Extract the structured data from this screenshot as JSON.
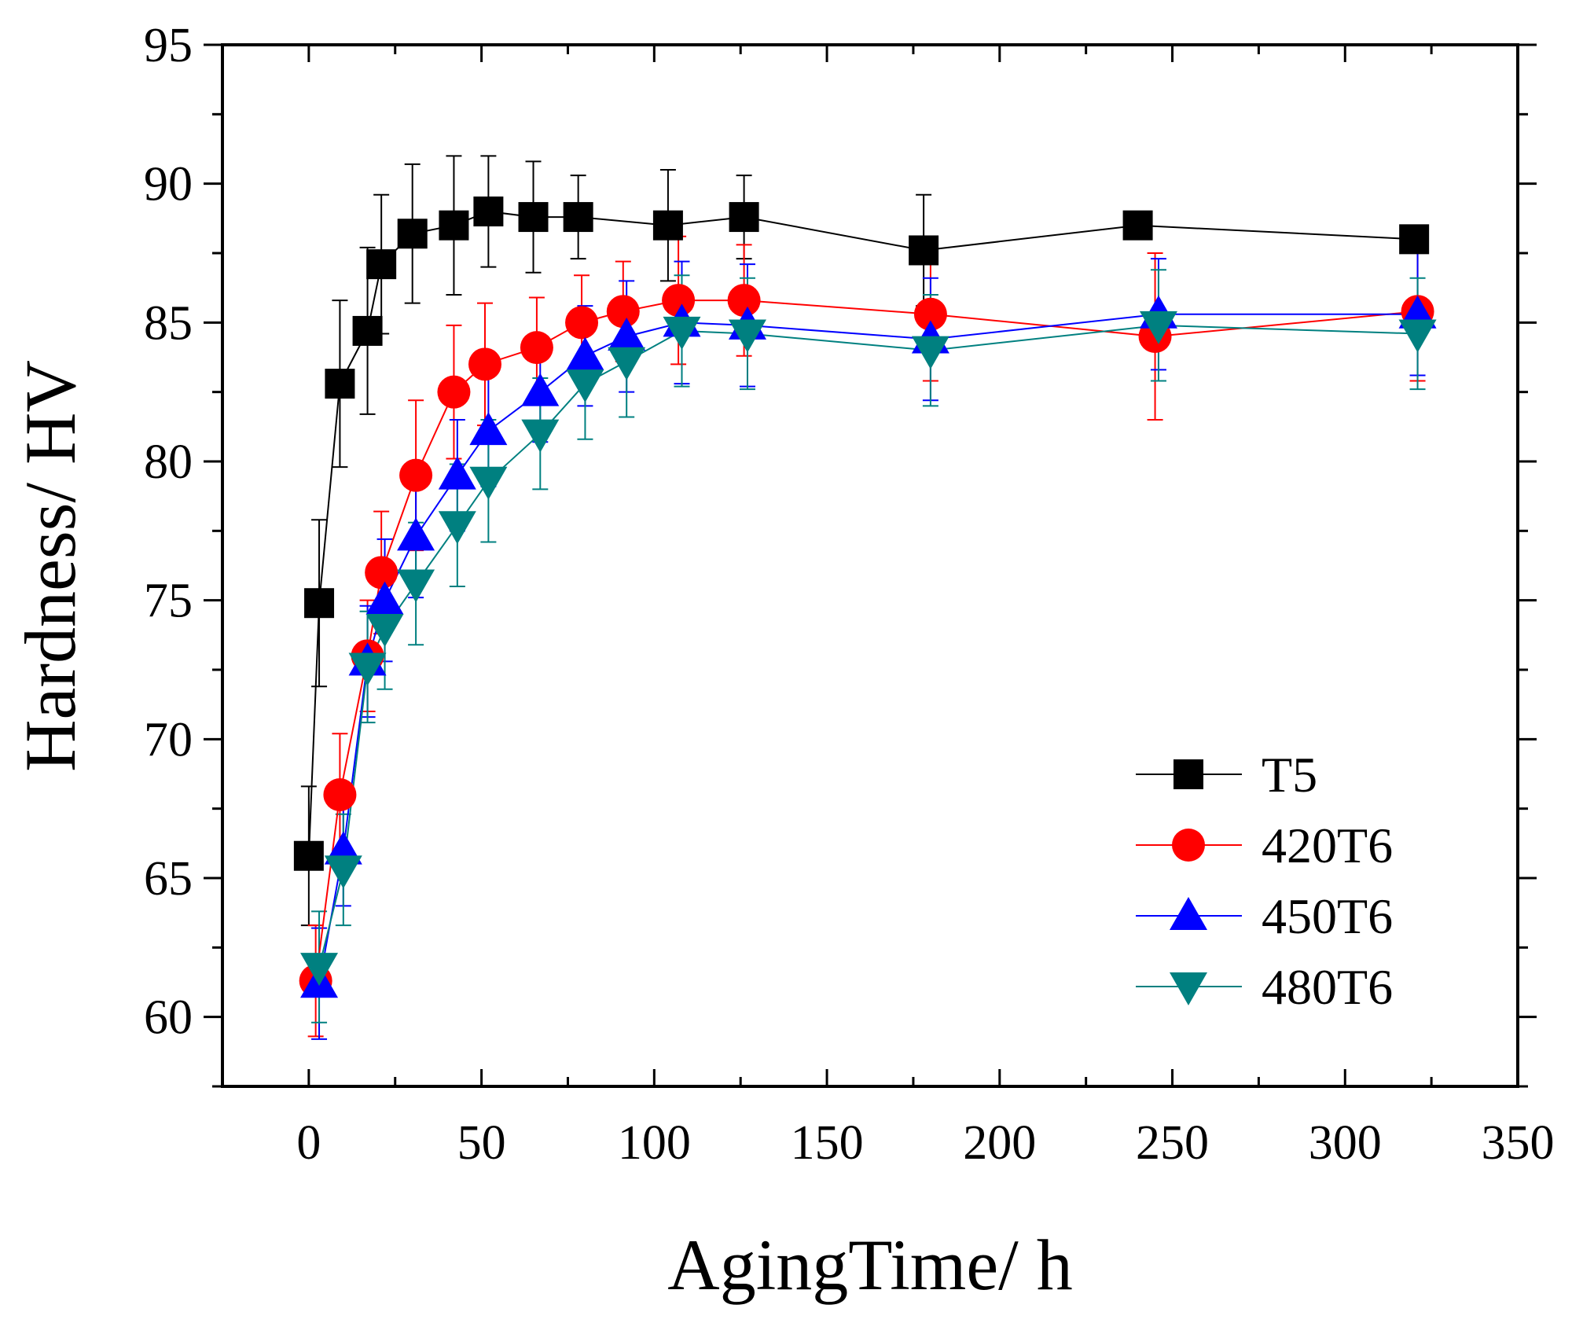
{
  "chart_data": {
    "type": "line",
    "title": "",
    "xlabel": "AgingTime/ h",
    "ylabel": "Hardness/ HV",
    "xlim": [
      -25,
      350
    ],
    "ylim": [
      57.5,
      95
    ],
    "x_ticks": [
      0,
      50,
      100,
      150,
      200,
      250,
      300,
      350
    ],
    "y_ticks": [
      60,
      65,
      70,
      75,
      80,
      85,
      90,
      95
    ],
    "x_tick_labels": [
      "0",
      "50",
      "100",
      "150",
      "200",
      "250",
      "300",
      "350"
    ],
    "y_tick_labels": [
      "60",
      "65",
      "70",
      "75",
      "80",
      "85",
      "90",
      "95"
    ],
    "grid": false,
    "legend_position": "lower-right",
    "series": [
      {
        "name": "T5",
        "marker": "square",
        "color": "#000000",
        "x": [
          0,
          3,
          9,
          17,
          21,
          30,
          42,
          52,
          65,
          78,
          104,
          126,
          178,
          240,
          320
        ],
        "y": [
          65.8,
          74.9,
          82.8,
          84.7,
          87.1,
          88.2,
          88.5,
          89.0,
          88.8,
          88.8,
          88.5,
          88.8,
          87.6,
          88.5,
          88.0
        ],
        "err": [
          2.5,
          3.0,
          3.0,
          3.0,
          2.5,
          2.5,
          2.5,
          2.0,
          2.0,
          1.5,
          2.0,
          1.5,
          2.0,
          0.0,
          0.0
        ]
      },
      {
        "name": "420T6",
        "marker": "circle",
        "color": "#ff0000",
        "x": [
          2,
          9,
          17,
          21,
          31,
          42,
          51,
          66,
          79,
          91,
          107,
          126,
          180,
          245,
          321
        ],
        "y": [
          61.3,
          68.0,
          73.0,
          76.0,
          79.5,
          82.5,
          83.5,
          84.1,
          85.0,
          85.4,
          85.8,
          85.8,
          85.3,
          84.5,
          85.4
        ],
        "err": [
          2.0,
          2.2,
          2.0,
          2.2,
          2.7,
          2.4,
          2.2,
          1.8,
          1.7,
          1.8,
          2.3,
          2.0,
          2.4,
          3.0,
          2.5
        ]
      },
      {
        "name": "450T6",
        "marker": "triangle-up",
        "color": "#0000ff",
        "x": [
          3,
          10,
          17,
          22,
          31,
          43,
          52,
          67,
          80,
          92,
          108,
          127,
          180,
          246,
          321
        ],
        "y": [
          61.2,
          66.0,
          72.8,
          75.0,
          77.3,
          79.5,
          81.1,
          82.5,
          83.8,
          84.5,
          85.0,
          84.9,
          84.4,
          85.3,
          85.3
        ],
        "err": [
          2.0,
          2.0,
          2.0,
          2.2,
          2.2,
          2.0,
          2.0,
          1.8,
          1.8,
          2.0,
          2.2,
          2.2,
          2.2,
          2.0,
          2.2
        ]
      },
      {
        "name": "480T6",
        "marker": "triangle-down",
        "color": "#008080",
        "x": [
          3,
          10,
          17,
          22,
          31,
          43,
          52,
          67,
          80,
          92,
          108,
          127,
          180,
          246,
          321
        ],
        "y": [
          61.8,
          65.3,
          72.6,
          74.0,
          75.6,
          77.7,
          79.3,
          81.0,
          82.8,
          83.6,
          84.7,
          84.6,
          84.0,
          84.9,
          84.6
        ],
        "err": [
          2.0,
          2.0,
          2.0,
          2.2,
          2.2,
          2.2,
          2.2,
          2.0,
          2.0,
          2.0,
          2.0,
          2.0,
          2.0,
          2.0,
          2.0
        ]
      }
    ]
  }
}
